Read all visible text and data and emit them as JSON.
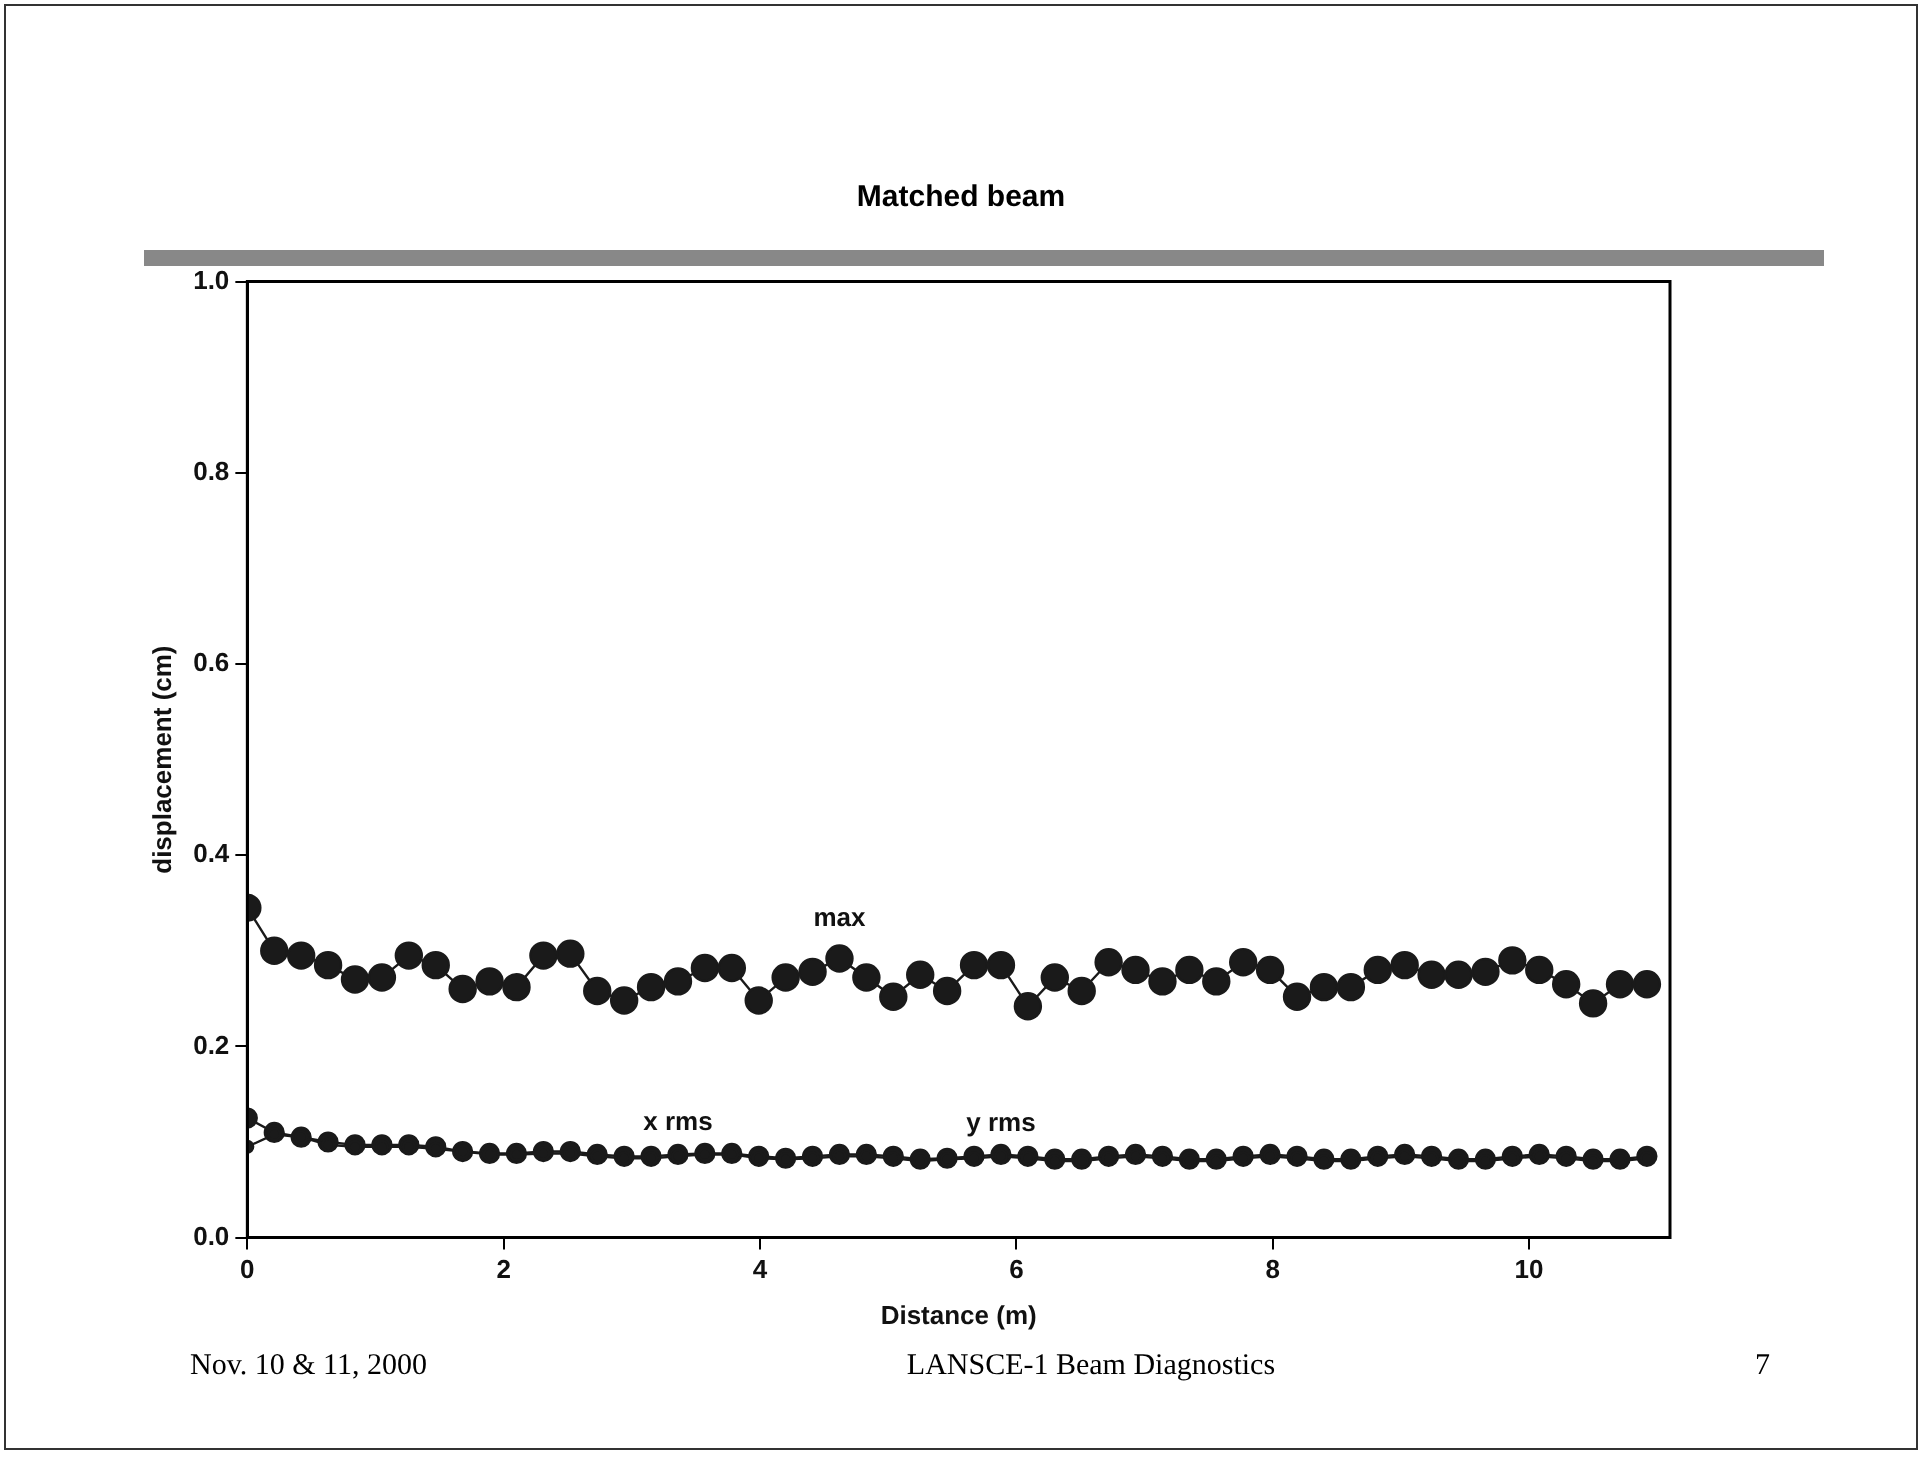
{
  "chart_data": {
    "type": "line",
    "title": "Matched beam",
    "xlabel": "Distance (m)",
    "ylabel": "displacement (cm)",
    "x": [
      0,
      0.21,
      0.42,
      0.63,
      0.84,
      1.05,
      1.26,
      1.47,
      1.68,
      1.89,
      2.1,
      2.31,
      2.52,
      2.73,
      2.94,
      3.15,
      3.36,
      3.57,
      3.78,
      3.99,
      4.2,
      4.41,
      4.62,
      4.83,
      5.04,
      5.25,
      5.46,
      5.67,
      5.88,
      6.09,
      6.3,
      6.51,
      6.72,
      6.93,
      7.14,
      7.35,
      7.56,
      7.77,
      7.98,
      8.19,
      8.4,
      8.61,
      8.82,
      9.03,
      9.24,
      9.45,
      9.66,
      9.87,
      10.08,
      10.29,
      10.5,
      10.71,
      10.92
    ],
    "series": [
      {
        "name": "max",
        "color": "#1a1a1a",
        "values": [
          0.345,
          0.3,
          0.295,
          0.285,
          0.27,
          0.272,
          0.295,
          0.285,
          0.26,
          0.268,
          0.262,
          0.295,
          0.297,
          0.258,
          0.248,
          0.262,
          0.268,
          0.282,
          0.282,
          0.248,
          0.272,
          0.278,
          0.292,
          0.272,
          0.252,
          0.275,
          0.258,
          0.285,
          0.285,
          0.242,
          0.272,
          0.258,
          0.288,
          0.28,
          0.268,
          0.28,
          0.268,
          0.288,
          0.28,
          0.252,
          0.262,
          0.262,
          0.28,
          0.285,
          0.275,
          0.275,
          0.278,
          0.29,
          0.28,
          0.265,
          0.245,
          0.265,
          0.265
        ]
      },
      {
        "name": "x rms",
        "color": "#1a1a1a",
        "values": [
          0.125,
          0.11,
          0.105,
          0.1,
          0.097,
          0.097,
          0.097,
          0.095,
          0.09,
          0.088,
          0.088,
          0.09,
          0.09,
          0.087,
          0.085,
          0.085,
          0.087,
          0.088,
          0.088,
          0.085,
          0.083,
          0.085,
          0.087,
          0.087,
          0.085,
          0.082,
          0.083,
          0.085,
          0.087,
          0.085,
          0.082,
          0.082,
          0.085,
          0.087,
          0.085,
          0.082,
          0.082,
          0.085,
          0.087,
          0.085,
          0.082,
          0.082,
          0.085,
          0.087,
          0.085,
          0.082,
          0.082,
          0.085,
          0.087,
          0.085,
          0.082,
          0.082,
          0.085
        ]
      },
      {
        "name": "y rms",
        "color": "#1a1a1a",
        "values": [
          0.095,
          0.108,
          0.105,
          0.097,
          0.095,
          0.095,
          0.095,
          0.093,
          0.09,
          0.087,
          0.087,
          0.088,
          0.088,
          0.085,
          0.083,
          0.083,
          0.085,
          0.087,
          0.087,
          0.083,
          0.082,
          0.083,
          0.085,
          0.085,
          0.083,
          0.08,
          0.082,
          0.083,
          0.085,
          0.083,
          0.08,
          0.08,
          0.083,
          0.085,
          0.083,
          0.08,
          0.08,
          0.083,
          0.085,
          0.083,
          0.08,
          0.08,
          0.083,
          0.085,
          0.083,
          0.08,
          0.08,
          0.083,
          0.085,
          0.083,
          0.08,
          0.08,
          0.083
        ]
      }
    ],
    "xlim": [
      0,
      11.1
    ],
    "xticks": [
      0,
      2,
      4,
      6,
      8,
      10
    ],
    "ylim": [
      0,
      1
    ],
    "yticks": [
      {
        "value": 0,
        "label": "0.0"
      },
      {
        "value": 0.2,
        "label": "0.2"
      },
      {
        "value": 0.4,
        "label": "0.4"
      },
      {
        "value": 0.6,
        "label": "0.6"
      },
      {
        "value": 0.8,
        "label": "0.8"
      },
      {
        "value": 1,
        "label": "1.0"
      }
    ],
    "grid": false,
    "legend": false,
    "marker": "circle",
    "line_style": "solid",
    "annotations": [
      "Nov. 10 & 11, 2000",
      "LANSCE-1 Beam Diagnostics",
      "7"
    ]
  }
}
